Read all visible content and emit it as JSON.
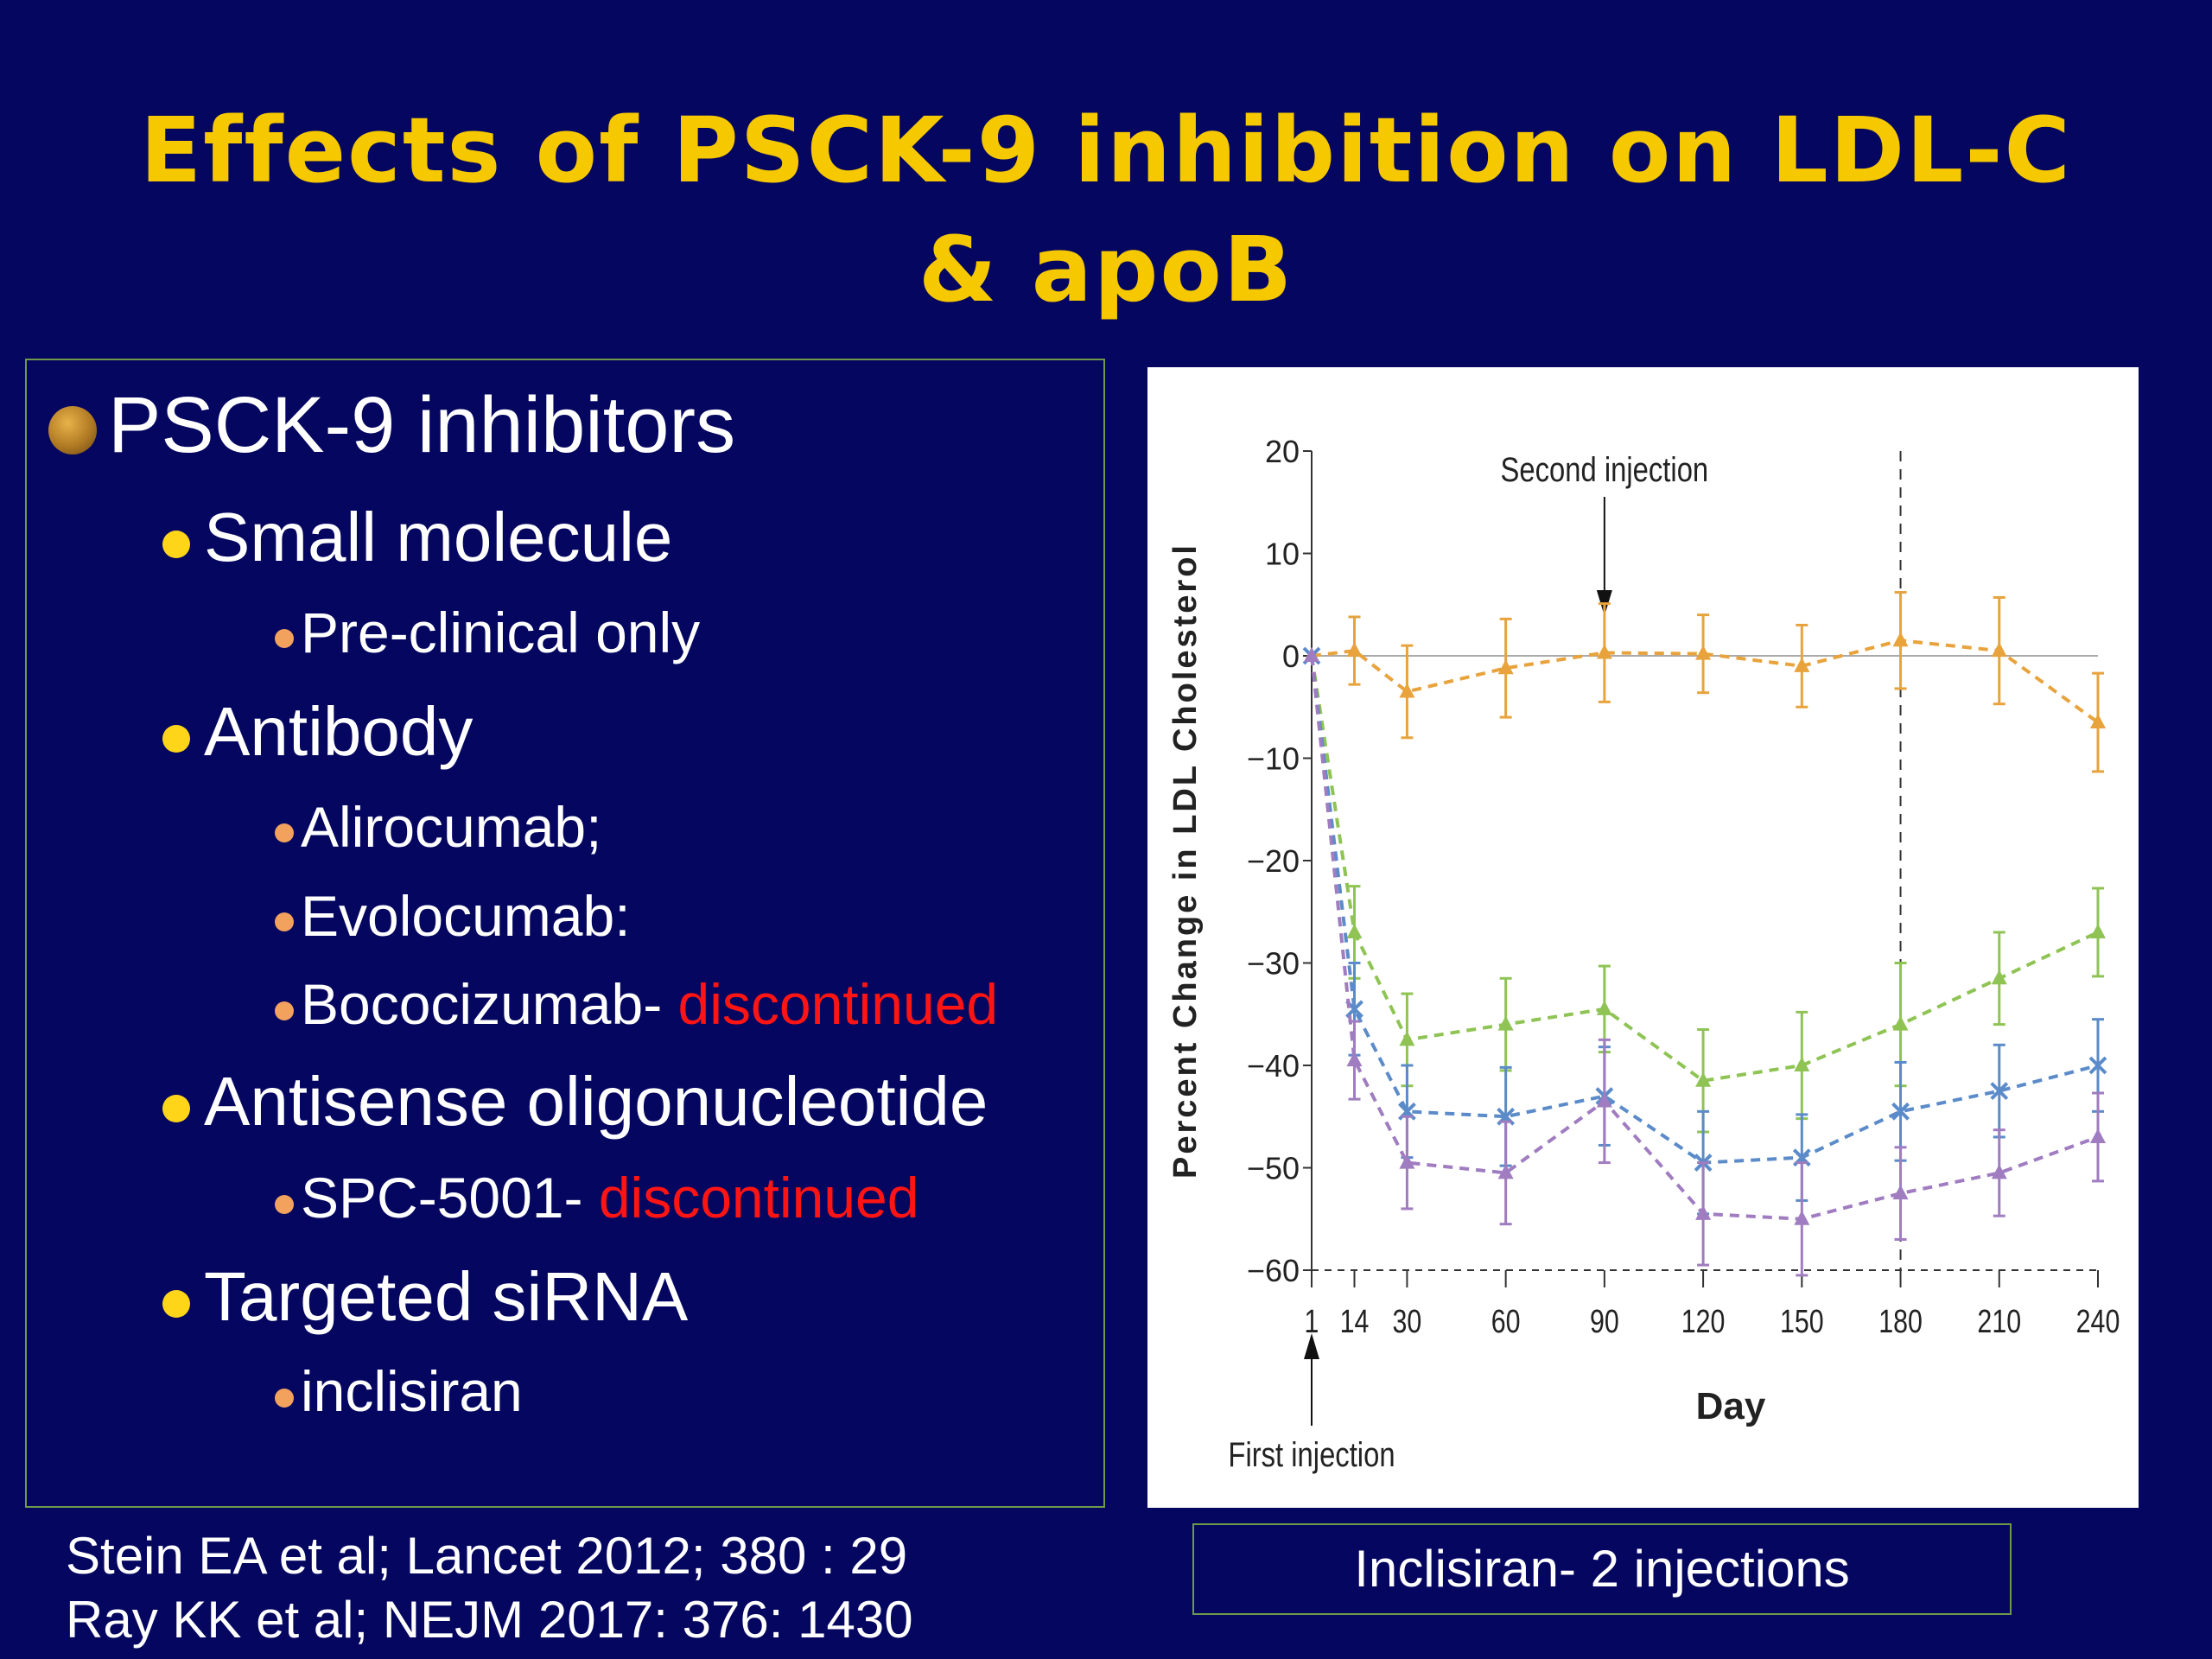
{
  "slide": {
    "title_line1": "Effects of PSCK-9 inhibition on LDL-C",
    "title_line2": "& apoB"
  },
  "bullets": {
    "l1": "PSCK-9 inhibitors",
    "small_molecule": "Small molecule",
    "preclinical": "Pre-clinical only",
    "antibody": "Antibody",
    "alirocumab": "Alirocumab;",
    "evolocumab": "Evolocumab:",
    "bococizumab": "Bococizumab- ",
    "bococizumab_status": "discontinued",
    "antisense": "Antisense oligonucleotide",
    "spc": "SPC-5001- ",
    "spc_status": "discontinued",
    "sirna": "Targeted siRNA",
    "inclisiran": "inclisiran"
  },
  "references": {
    "ref1": "Stein EA et al; Lancet 2012; 380 : 29",
    "ref2": "Ray KK et al; NEJM 2017: 376: 1430"
  },
  "caption": "Inclisiran- 2 injections",
  "colors": {
    "background": "#040660",
    "title": "#f5c800",
    "discontinued": "#ff1414"
  },
  "chart_data": {
    "type": "line",
    "xlabel": "Day",
    "ylabel": "Percent Change in LDL Cholesterol",
    "x": [
      1,
      14,
      30,
      60,
      90,
      120,
      150,
      180,
      210,
      240
    ],
    "xticks": [
      "1",
      "14",
      "30",
      "60",
      "90",
      "120",
      "150",
      "180",
      "210",
      "240"
    ],
    "yticks": [
      20,
      10,
      0,
      -10,
      -20,
      -30,
      -40,
      -50,
      -60
    ],
    "ylim": [
      -60,
      20
    ],
    "xlim": [
      1,
      240
    ],
    "grid": false,
    "zero_line": true,
    "reference_line_y": -60,
    "annotations": [
      {
        "text": "Second injection",
        "x": 90
      },
      {
        "text": "First injection",
        "x": 1
      }
    ],
    "vertical_dashed_line_x": 180,
    "series": [
      {
        "color": "#e8a33c",
        "marker": "triangle",
        "values": [
          0,
          0.5,
          -3.5,
          -1.2,
          0.3,
          0.2,
          -1,
          1.5,
          0.5,
          -6.5
        ],
        "error": [
          0,
          3.3,
          4.5,
          4.8,
          4.8,
          3.8,
          4,
          4.7,
          5.2,
          4.8
        ]
      },
      {
        "color": "#8fc455",
        "marker": "triangle",
        "values": [
          0,
          -27,
          -37.5,
          -36,
          -34.5,
          -41.5,
          -40,
          -36,
          -31.5,
          -27
        ],
        "error": [
          0,
          4.5,
          4.5,
          4.5,
          4.2,
          5,
          5.2,
          6,
          4.5,
          4.3
        ]
      },
      {
        "color": "#5b8bc9",
        "marker": "x",
        "values": [
          0,
          -34.5,
          -44.5,
          -45,
          -43,
          -49.5,
          -49,
          -44.5,
          -42.5,
          -40
        ],
        "error": [
          0,
          4.5,
          4.5,
          4.8,
          4.8,
          5,
          4.2,
          4.8,
          4.5,
          4.5
        ]
      },
      {
        "color": "#a07cc0",
        "marker": "triangle",
        "values": [
          0,
          -39.5,
          -49.5,
          -50.5,
          -43.5,
          -54.5,
          -55,
          -52.5,
          -50.5,
          -47
        ],
        "error": [
          0,
          3.8,
          4.5,
          5,
          6,
          5,
          5.5,
          4.5,
          4.2,
          4.3
        ]
      }
    ]
  }
}
